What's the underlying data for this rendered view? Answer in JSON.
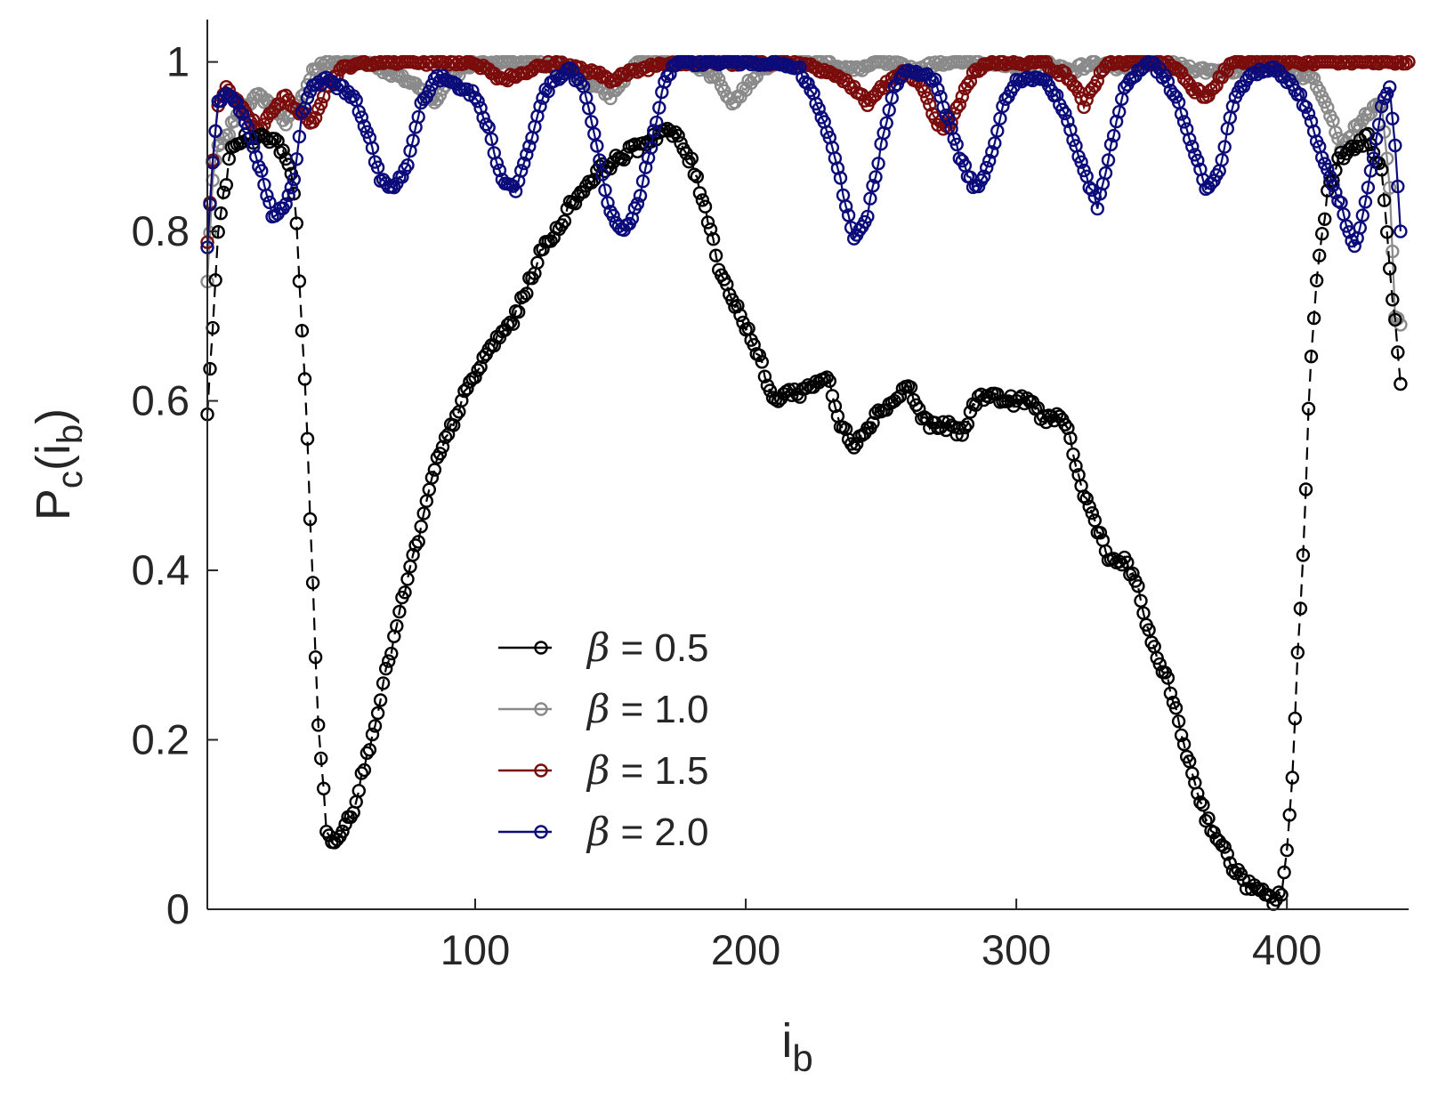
{
  "chart_data": {
    "type": "line",
    "title": "",
    "xlabel": {
      "main": "i",
      "sub": "b"
    },
    "ylabel": {
      "main": "P",
      "sub": "c",
      "arg_open": "(i",
      "arg_sub": "b",
      "arg_close": ")"
    },
    "xlim": [
      1,
      445
    ],
    "ylim": [
      0,
      1.05
    ],
    "xticks": [
      100,
      200,
      300,
      400
    ],
    "xtick_labels": [
      "100",
      "200",
      "300",
      "400"
    ],
    "yticks": [
      0,
      0.2,
      0.4,
      0.6,
      0.8,
      1
    ],
    "ytick_labels": [
      "0",
      "0.2",
      "0.4",
      "0.6",
      "0.8",
      "1"
    ],
    "grid": false,
    "legend_location": "bottom-center",
    "marker": "circle",
    "series": [
      {
        "name": "β = 0.5",
        "legend_symbol": "β",
        "legend_value": "= 0.5",
        "color": "#000000",
        "line_style": "dashed",
        "anchors": [
          [
            1,
            0.58
          ],
          [
            3,
            0.69
          ],
          [
            5,
            0.8
          ],
          [
            7,
            0.84
          ],
          [
            10,
            0.9
          ],
          [
            15,
            0.91
          ],
          [
            20,
            0.91
          ],
          [
            25,
            0.91
          ],
          [
            30,
            0.89
          ],
          [
            32,
            0.87
          ],
          [
            34,
            0.81
          ],
          [
            35,
            0.74
          ],
          [
            36,
            0.68
          ],
          [
            37,
            0.63
          ],
          [
            38,
            0.56
          ],
          [
            39,
            0.46
          ],
          [
            40,
            0.38
          ],
          [
            41,
            0.3
          ],
          [
            42,
            0.22
          ],
          [
            43,
            0.18
          ],
          [
            44,
            0.14
          ],
          [
            45,
            0.09
          ],
          [
            47,
            0.08
          ],
          [
            50,
            0.09
          ],
          [
            55,
            0.12
          ],
          [
            60,
            0.18
          ],
          [
            65,
            0.25
          ],
          [
            70,
            0.32
          ],
          [
            75,
            0.39
          ],
          [
            80,
            0.45
          ],
          [
            85,
            0.52
          ],
          [
            90,
            0.56
          ],
          [
            95,
            0.6
          ],
          [
            100,
            0.63
          ],
          [
            105,
            0.66
          ],
          [
            110,
            0.68
          ],
          [
            115,
            0.7
          ],
          [
            120,
            0.74
          ],
          [
            125,
            0.78
          ],
          [
            130,
            0.8
          ],
          [
            135,
            0.83
          ],
          [
            140,
            0.85
          ],
          [
            145,
            0.87
          ],
          [
            150,
            0.88
          ],
          [
            155,
            0.89
          ],
          [
            160,
            0.9
          ],
          [
            165,
            0.91
          ],
          [
            170,
            0.92
          ],
          [
            175,
            0.91
          ],
          [
            180,
            0.88
          ],
          [
            185,
            0.83
          ],
          [
            190,
            0.76
          ],
          [
            195,
            0.72
          ],
          [
            200,
            0.69
          ],
          [
            205,
            0.65
          ],
          [
            210,
            0.6
          ],
          [
            215,
            0.61
          ],
          [
            220,
            0.61
          ],
          [
            225,
            0.62
          ],
          [
            230,
            0.63
          ],
          [
            235,
            0.57
          ],
          [
            240,
            0.55
          ],
          [
            245,
            0.57
          ],
          [
            250,
            0.59
          ],
          [
            255,
            0.6
          ],
          [
            260,
            0.62
          ],
          [
            265,
            0.58
          ],
          [
            270,
            0.57
          ],
          [
            275,
            0.57
          ],
          [
            280,
            0.56
          ],
          [
            285,
            0.6
          ],
          [
            290,
            0.61
          ],
          [
            295,
            0.6
          ],
          [
            300,
            0.6
          ],
          [
            305,
            0.6
          ],
          [
            310,
            0.58
          ],
          [
            315,
            0.58
          ],
          [
            320,
            0.56
          ],
          [
            322,
            0.52
          ],
          [
            325,
            0.49
          ],
          [
            330,
            0.45
          ],
          [
            335,
            0.41
          ],
          [
            340,
            0.41
          ],
          [
            345,
            0.38
          ],
          [
            350,
            0.31
          ],
          [
            355,
            0.28
          ],
          [
            360,
            0.22
          ],
          [
            365,
            0.16
          ],
          [
            370,
            0.11
          ],
          [
            375,
            0.08
          ],
          [
            380,
            0.05
          ],
          [
            385,
            0.03
          ],
          [
            390,
            0.02
          ],
          [
            395,
            0.01
          ],
          [
            398,
            0.02
          ],
          [
            400,
            0.07
          ],
          [
            402,
            0.15
          ],
          [
            404,
            0.3
          ],
          [
            406,
            0.42
          ],
          [
            407,
            0.5
          ],
          [
            408,
            0.59
          ],
          [
            409,
            0.65
          ],
          [
            410,
            0.7
          ],
          [
            411,
            0.74
          ],
          [
            412,
            0.77
          ],
          [
            414,
            0.82
          ],
          [
            415,
            0.85
          ],
          [
            420,
            0.89
          ],
          [
            425,
            0.9
          ],
          [
            430,
            0.91
          ],
          [
            435,
            0.87
          ],
          [
            438,
            0.76
          ],
          [
            440,
            0.69
          ],
          [
            442,
            0.62
          ]
        ]
      },
      {
        "name": "β = 1.0",
        "legend_symbol": "β",
        "legend_value": "= 1.0",
        "color": "#8a8a8a",
        "line_style": "solid",
        "anchors": [
          [
            1,
            0.74
          ],
          [
            3,
            0.86
          ],
          [
            5,
            0.9
          ],
          [
            8,
            0.91
          ],
          [
            12,
            0.94
          ],
          [
            15,
            0.95
          ],
          [
            20,
            0.96
          ],
          [
            25,
            0.95
          ],
          [
            30,
            0.93
          ],
          [
            35,
            0.95
          ],
          [
            40,
            0.99
          ],
          [
            45,
            1.0
          ],
          [
            60,
            1.0
          ],
          [
            80,
            0.97
          ],
          [
            85,
            0.95
          ],
          [
            90,
            0.98
          ],
          [
            100,
            1.0
          ],
          [
            120,
            1.0
          ],
          [
            135,
            0.99
          ],
          [
            140,
            0.98
          ],
          [
            150,
            0.96
          ],
          [
            155,
            0.98
          ],
          [
            160,
            1.0
          ],
          [
            180,
            1.0
          ],
          [
            190,
            0.98
          ],
          [
            195,
            0.95
          ],
          [
            200,
            0.97
          ],
          [
            205,
            0.99
          ],
          [
            210,
            1.0
          ],
          [
            230,
            1.0
          ],
          [
            240,
            0.99
          ],
          [
            250,
            1.0
          ],
          [
            265,
            0.99
          ],
          [
            270,
            1.0
          ],
          [
            290,
            1.0
          ],
          [
            300,
            0.99
          ],
          [
            310,
            1.0
          ],
          [
            320,
            0.99
          ],
          [
            330,
            1.0
          ],
          [
            340,
            0.99
          ],
          [
            350,
            1.0
          ],
          [
            370,
            0.99
          ],
          [
            380,
            0.99
          ],
          [
            390,
            1.0
          ],
          [
            400,
            0.99
          ],
          [
            410,
            0.98
          ],
          [
            415,
            0.95
          ],
          [
            420,
            0.9
          ],
          [
            425,
            0.92
          ],
          [
            430,
            0.94
          ],
          [
            435,
            0.95
          ],
          [
            438,
            0.85
          ],
          [
            440,
            0.7
          ],
          [
            442,
            0.69
          ]
        ]
      },
      {
        "name": "β = 1.5",
        "legend_symbol": "β",
        "legend_value": "= 1.5",
        "color": "#7b0c0c",
        "line_style": "solid",
        "anchors": [
          [
            1,
            0.79
          ],
          [
            3,
            0.88
          ],
          [
            5,
            0.95
          ],
          [
            8,
            0.97
          ],
          [
            10,
            0.96
          ],
          [
            15,
            0.94
          ],
          [
            20,
            0.92
          ],
          [
            25,
            0.94
          ],
          [
            30,
            0.96
          ],
          [
            35,
            0.94
          ],
          [
            40,
            0.93
          ],
          [
            45,
            0.97
          ],
          [
            50,
            0.99
          ],
          [
            60,
            1.0
          ],
          [
            100,
            1.0
          ],
          [
            110,
            0.98
          ],
          [
            120,
            0.99
          ],
          [
            130,
            1.0
          ],
          [
            140,
            0.99
          ],
          [
            150,
            0.98
          ],
          [
            160,
            0.99
          ],
          [
            170,
            1.0
          ],
          [
            220,
            1.0
          ],
          [
            230,
            0.99
          ],
          [
            240,
            0.97
          ],
          [
            245,
            0.95
          ],
          [
            250,
            0.97
          ],
          [
            255,
            0.98
          ],
          [
            260,
            0.99
          ],
          [
            265,
            0.97
          ],
          [
            270,
            0.93
          ],
          [
            275,
            0.92
          ],
          [
            280,
            0.96
          ],
          [
            285,
            0.99
          ],
          [
            290,
            1.0
          ],
          [
            310,
            1.0
          ],
          [
            320,
            0.98
          ],
          [
            325,
            0.95
          ],
          [
            330,
            0.98
          ],
          [
            335,
            1.0
          ],
          [
            355,
            1.0
          ],
          [
            360,
            0.99
          ],
          [
            365,
            0.97
          ],
          [
            370,
            0.96
          ],
          [
            375,
            0.98
          ],
          [
            380,
            1.0
          ],
          [
            445,
            1.0
          ]
        ]
      },
      {
        "name": "β = 2.0",
        "legend_symbol": "β",
        "legend_value": "= 2.0",
        "color": "#0b0b7a",
        "line_style": "solid",
        "anchors": [
          [
            1,
            0.78
          ],
          [
            3,
            0.88
          ],
          [
            5,
            0.95
          ],
          [
            8,
            0.96
          ],
          [
            12,
            0.95
          ],
          [
            15,
            0.93
          ],
          [
            20,
            0.88
          ],
          [
            25,
            0.82
          ],
          [
            30,
            0.83
          ],
          [
            33,
            0.86
          ],
          [
            36,
            0.94
          ],
          [
            40,
            0.97
          ],
          [
            45,
            0.98
          ],
          [
            50,
            0.97
          ],
          [
            55,
            0.96
          ],
          [
            60,
            0.92
          ],
          [
            65,
            0.86
          ],
          [
            70,
            0.85
          ],
          [
            75,
            0.88
          ],
          [
            80,
            0.95
          ],
          [
            85,
            0.98
          ],
          [
            90,
            0.98
          ],
          [
            95,
            0.97
          ],
          [
            100,
            0.96
          ],
          [
            105,
            0.92
          ],
          [
            110,
            0.86
          ],
          [
            115,
            0.85
          ],
          [
            120,
            0.9
          ],
          [
            125,
            0.96
          ],
          [
            130,
            0.98
          ],
          [
            135,
            0.99
          ],
          [
            140,
            0.97
          ],
          [
            145,
            0.9
          ],
          [
            150,
            0.82
          ],
          [
            155,
            0.8
          ],
          [
            160,
            0.83
          ],
          [
            165,
            0.9
          ],
          [
            170,
            0.98
          ],
          [
            175,
            1.0
          ],
          [
            210,
            1.0
          ],
          [
            220,
            0.99
          ],
          [
            225,
            0.96
          ],
          [
            230,
            0.92
          ],
          [
            235,
            0.86
          ],
          [
            240,
            0.79
          ],
          [
            245,
            0.82
          ],
          [
            250,
            0.9
          ],
          [
            255,
            0.97
          ],
          [
            260,
            0.99
          ],
          [
            270,
            0.98
          ],
          [
            275,
            0.93
          ],
          [
            280,
            0.88
          ],
          [
            285,
            0.85
          ],
          [
            290,
            0.88
          ],
          [
            295,
            0.95
          ],
          [
            300,
            0.98
          ],
          [
            310,
            0.98
          ],
          [
            315,
            0.96
          ],
          [
            320,
            0.92
          ],
          [
            325,
            0.87
          ],
          [
            330,
            0.83
          ],
          [
            335,
            0.9
          ],
          [
            340,
            0.97
          ],
          [
            345,
            0.99
          ],
          [
            350,
            1.0
          ],
          [
            355,
            0.98
          ],
          [
            360,
            0.95
          ],
          [
            365,
            0.9
          ],
          [
            370,
            0.85
          ],
          [
            375,
            0.87
          ],
          [
            380,
            0.95
          ],
          [
            385,
            0.98
          ],
          [
            390,
            0.99
          ],
          [
            395,
            0.99
          ],
          [
            400,
            0.98
          ],
          [
            405,
            0.96
          ],
          [
            410,
            0.92
          ],
          [
            415,
            0.87
          ],
          [
            420,
            0.83
          ],
          [
            425,
            0.78
          ],
          [
            430,
            0.85
          ],
          [
            435,
            0.95
          ],
          [
            438,
            0.97
          ],
          [
            440,
            0.9
          ],
          [
            442,
            0.8
          ]
        ]
      }
    ]
  }
}
